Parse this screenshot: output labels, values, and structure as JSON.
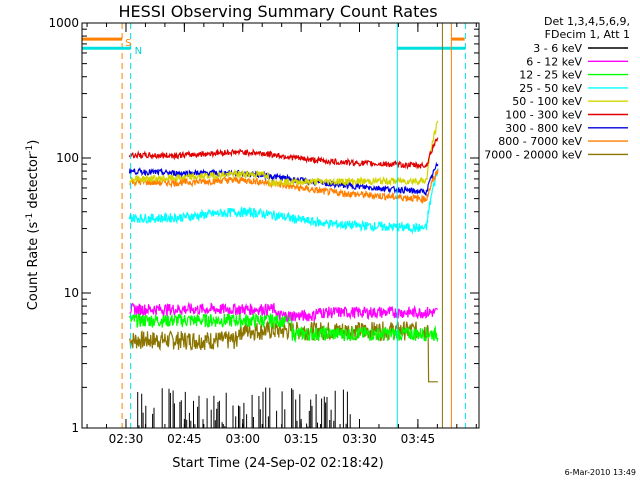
{
  "chart_data": {
    "type": "line",
    "title": "HESSI Observing Summary Count Rates",
    "xlabel": "Start Time (24-Sep-02 02:18:42)",
    "ylabel_main": "Count Rate (s",
    "ylabel_sup1": "-1",
    "ylabel_mid": " detector",
    "ylabel_sup2": "-1",
    "ylabel_end": ")",
    "yscale": "log",
    "ylim": [
      1,
      1000
    ],
    "xlim_minutes": [
      0,
      102
    ],
    "x_ticks": [
      {
        "label": "02:30",
        "min": 11.3
      },
      {
        "label": "02:45",
        "min": 26.3
      },
      {
        "label": "03:00",
        "min": 41.3
      },
      {
        "label": "03:15",
        "min": 56.3
      },
      {
        "label": "03:30",
        "min": 71.3
      },
      {
        "label": "03:45",
        "min": 86.3
      }
    ],
    "y_ticks": [
      {
        "label": "1",
        "value": 1
      },
      {
        "label": "10",
        "value": 10
      },
      {
        "label": "100",
        "value": 100
      },
      {
        "label": "1000",
        "value": 1000
      }
    ],
    "legend_header": [
      "Det 1,3,4,5,6,9,",
      "FDecim 1, Att 1"
    ],
    "legend_position": "right",
    "series": [
      {
        "name": "3 - 6 keV",
        "color": "#000000"
      },
      {
        "name": "6 - 12 keV",
        "color": "#ff00ff"
      },
      {
        "name": "12 - 25 keV",
        "color": "#00ff00"
      },
      {
        "name": "25 - 50 keV",
        "color": "#00ffff"
      },
      {
        "name": "50 - 100 keV",
        "color": "#d4d400"
      },
      {
        "name": "100 - 300 keV",
        "color": "#e00000"
      },
      {
        "name": "300 - 800 keV",
        "color": "#0000e0"
      },
      {
        "name": "800 - 7000 keV",
        "color": "#ff7f00"
      },
      {
        "name": "7000 - 20000 keV",
        "color": "#8b7500"
      }
    ],
    "annotations": {
      "saa_label": "S",
      "night_label": "N"
    },
    "timestamp": "6-Mar-2010 13:49"
  }
}
